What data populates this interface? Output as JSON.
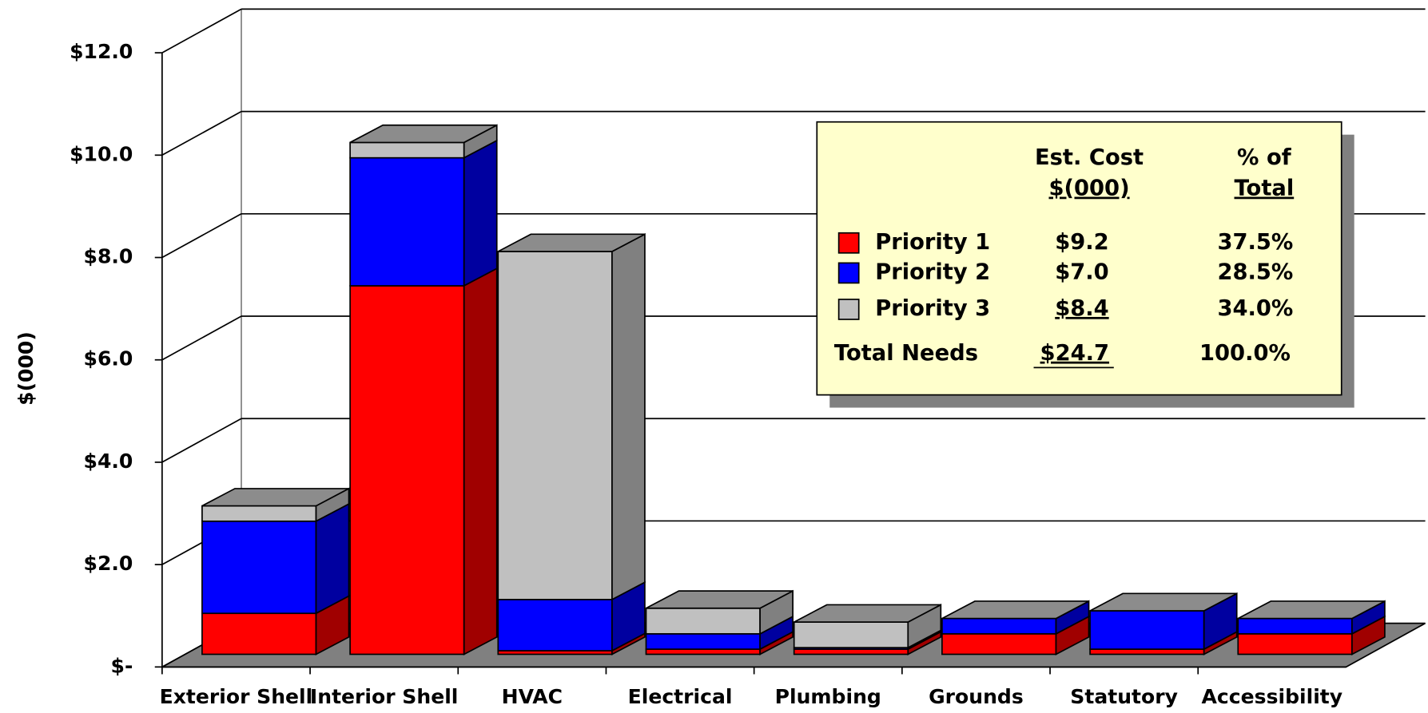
{
  "chart_data": {
    "type": "bar3d_stacked",
    "y_label": "$(000)",
    "categories": [
      "Exterior Shell",
      "Interior Shell",
      "HVAC",
      "Electrical",
      "Plumbing",
      "Grounds",
      "Statutory",
      "Accessibility"
    ],
    "series": [
      {
        "name": "Priority 1",
        "color": "#ff0000",
        "side_color": "#a00000",
        "values": [
          0.8,
          7.2,
          0.07,
          0.1,
          0.1,
          0.4,
          0.1,
          0.4
        ],
        "cost_label": "$9.2",
        "share_label": "37.5%"
      },
      {
        "name": "Priority 2",
        "color": "#0000ff",
        "side_color": "#0000a0",
        "values": [
          1.8,
          2.5,
          1.0,
          0.3,
          0.03,
          0.3,
          0.75,
          0.3
        ],
        "cost_label": "$7.0",
        "share_label": "28.5%"
      },
      {
        "name": "Priority 3",
        "color": "#c0c0c0",
        "side_color": "#808080",
        "values": [
          0.3,
          0.3,
          6.8,
          0.5,
          0.5,
          0,
          0,
          0
        ],
        "cost_label": "$8.4",
        "share_label": "34.0%"
      }
    ],
    "ylim": [
      0,
      12
    ],
    "yticks": [
      {
        "value": 0,
        "label": "$-"
      },
      {
        "value": 2,
        "label": "$2.0"
      },
      {
        "value": 4,
        "label": "$4.0"
      },
      {
        "value": 6,
        "label": "$6.0"
      },
      {
        "value": 8,
        "label": "$8.0"
      },
      {
        "value": 10,
        "label": "$10.0"
      },
      {
        "value": 12,
        "label": "$12.0"
      }
    ],
    "grid": true,
    "legend_table": {
      "cost_header": [
        "Est. Cost",
        "$(000)"
      ],
      "share_header": [
        "% of",
        "Total"
      ],
      "total_label": "Total  Needs",
      "total_cost": "$24.7",
      "total_share": "100.0%"
    }
  }
}
